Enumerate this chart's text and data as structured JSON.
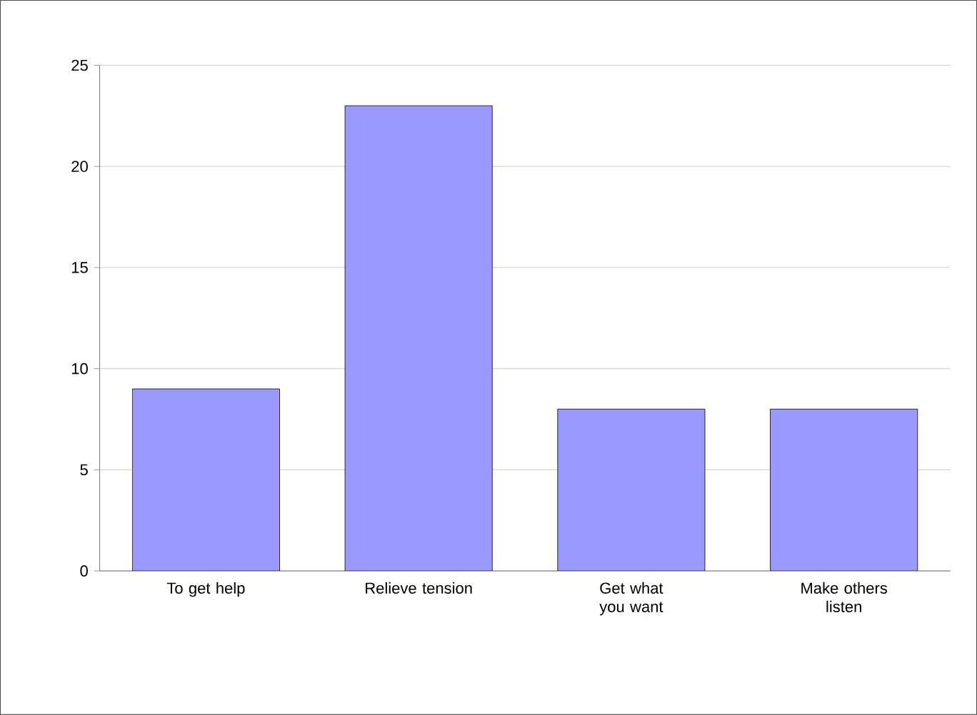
{
  "chart_data": {
    "type": "bar",
    "categories": [
      "To get help",
      "Relieve tension",
      "Get what you want",
      "Make others listen"
    ],
    "values": [
      9,
      23,
      8,
      8
    ],
    "color": "#9999ff",
    "ylim": [
      0,
      25
    ],
    "yticks": [
      0,
      5,
      10,
      15,
      20,
      25
    ],
    "grid": "y"
  }
}
